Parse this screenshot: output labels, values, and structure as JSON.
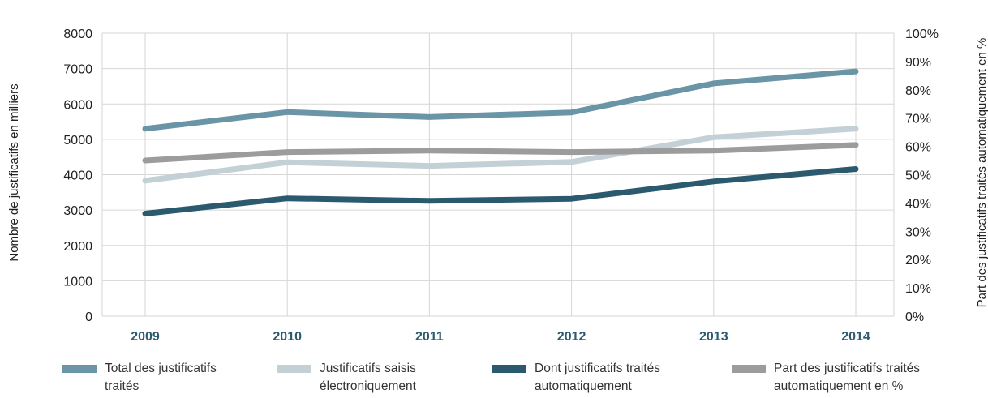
{
  "chart_data": {
    "type": "line",
    "categories": [
      "2009",
      "2010",
      "2011",
      "2012",
      "2013",
      "2014"
    ],
    "series": [
      {
        "name": "Total des justificatifs traités",
        "color": "#6a95a6",
        "axis": "left",
        "values": [
          5300,
          5770,
          5630,
          5760,
          6580,
          6920
        ]
      },
      {
        "name": "Justificatifs saisis électroniquement",
        "color": "#c3d0d6",
        "axis": "left",
        "values": [
          3830,
          4350,
          4250,
          4360,
          5060,
          5300
        ]
      },
      {
        "name": "Dont justificatifs traités automatiquement",
        "color": "#2b5a6e",
        "axis": "left",
        "values": [
          2900,
          3330,
          3260,
          3320,
          3810,
          4160
        ]
      },
      {
        "name": "Part des justificatifs traités automatiquement en %",
        "color": "#9c9c9c",
        "axis": "right",
        "values": [
          55,
          58,
          58.5,
          58,
          58.5,
          60.5
        ]
      }
    ],
    "ylabel": "Nombre de justificatifs en milliers",
    "ylabel_right": "Part des justificatifs traités automatiquement en %",
    "ylim": [
      0,
      8000
    ],
    "yticks": [
      "0",
      "1000",
      "2000",
      "3000",
      "4000",
      "5000",
      "6000",
      "7000",
      "8000"
    ],
    "ylim_right": [
      0,
      100
    ],
    "yticks_right": [
      "0%",
      "10%",
      "20%",
      "30%",
      "40%",
      "50%",
      "60%",
      "70%",
      "80%",
      "90%",
      "100%"
    ],
    "grid": true,
    "legend_position": "bottom"
  },
  "legend": [
    {
      "line1": "Total des justificatifs",
      "line2": "traités",
      "color": "#6a95a6"
    },
    {
      "line1": "Justificatifs saisis",
      "line2": "électroniquement",
      "color": "#c3d0d6"
    },
    {
      "line1": "Dont justificatifs traités",
      "line2": "automatiquement",
      "color": "#2b5a6e"
    },
    {
      "line1": "Part des justificatifs traités",
      "line2": "automatiquement en %",
      "color": "#9c9c9c"
    }
  ]
}
